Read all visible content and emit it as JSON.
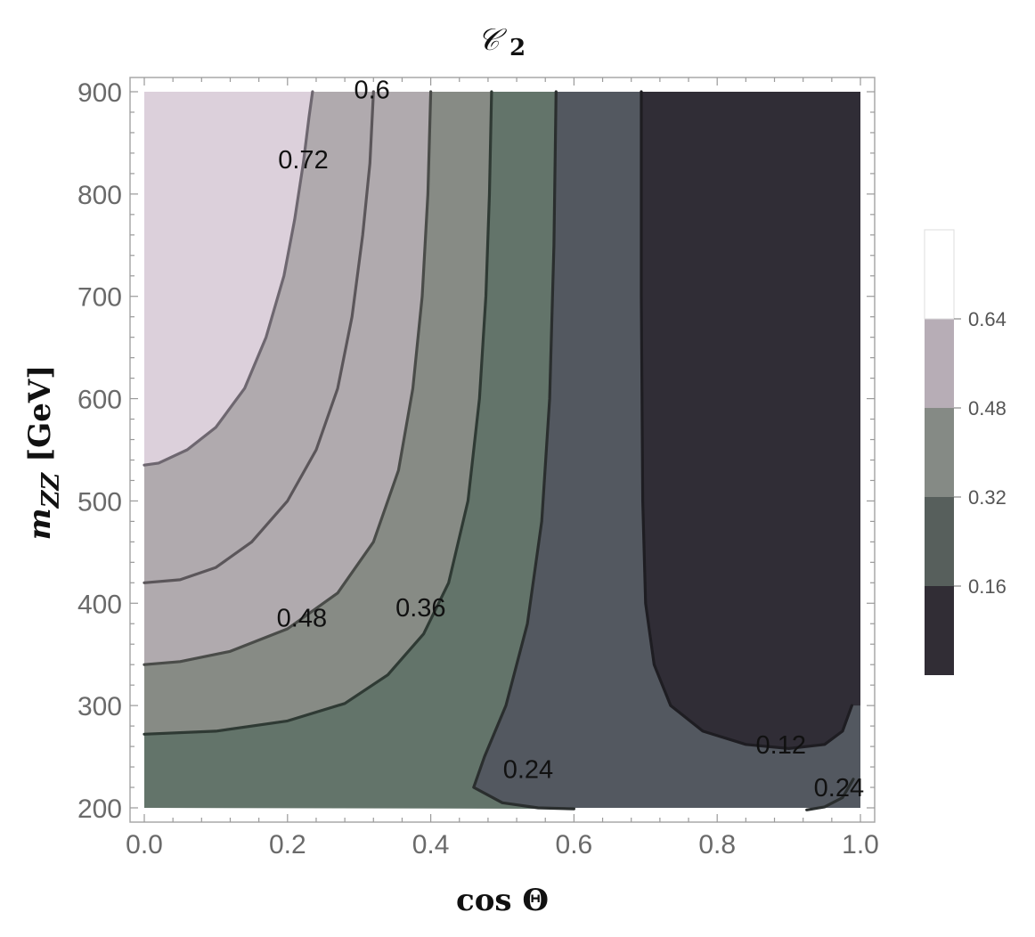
{
  "chart_data": {
    "type": "contour",
    "title": "𝒞",
    "title_subscript": "2",
    "xlabel": "cos Θ",
    "ylabel_main": "m",
    "ylabel_sub": "ZZ",
    "ylabel_unit": "[GeV]",
    "xlim": [
      0.0,
      1.0
    ],
    "ylim": [
      200,
      900
    ],
    "x_ticks": [
      0.0,
      0.2,
      0.4,
      0.6,
      0.8,
      1.0
    ],
    "x_tick_labels": [
      "0.0",
      "0.2",
      "0.4",
      "0.6",
      "0.8",
      "1.0"
    ],
    "y_ticks": [
      200,
      300,
      400,
      500,
      600,
      700,
      800,
      900
    ],
    "y_tick_labels": [
      "200",
      "300",
      "400",
      "500",
      "600",
      "700",
      "800",
      "900"
    ],
    "bands": [
      {
        "range": "> 0.72",
        "color": "#dcd0db"
      },
      {
        "range": "0.60 – 0.72",
        "color": "#b0aaae"
      },
      {
        "range": "0.48 – 0.60",
        "color": "#878b85"
      },
      {
        "range": "0.36 – 0.48",
        "color": "#63746a"
      },
      {
        "range": "0.12 – 0.36",
        "color": "#535860"
      },
      {
        "range": "< 0.12",
        "color": "#302d36"
      }
    ],
    "contours": [
      {
        "level": 0.72,
        "label": "0.72",
        "points": [
          [
            0.0,
            535
          ],
          [
            0.02,
            537
          ],
          [
            0.06,
            550
          ],
          [
            0.1,
            572
          ],
          [
            0.14,
            610
          ],
          [
            0.17,
            660
          ],
          [
            0.195,
            720
          ],
          [
            0.21,
            775
          ],
          [
            0.222,
            830
          ],
          [
            0.23,
            875
          ],
          [
            0.235,
            900
          ]
        ]
      },
      {
        "level": 0.6,
        "label": "0.6",
        "points": [
          [
            0.0,
            420
          ],
          [
            0.05,
            423
          ],
          [
            0.1,
            435
          ],
          [
            0.15,
            460
          ],
          [
            0.2,
            500
          ],
          [
            0.24,
            550
          ],
          [
            0.27,
            610
          ],
          [
            0.29,
            680
          ],
          [
            0.305,
            760
          ],
          [
            0.315,
            830
          ],
          [
            0.32,
            900
          ]
        ]
      },
      {
        "level": 0.48,
        "label": "0.48",
        "points": [
          [
            0.0,
            340
          ],
          [
            0.05,
            343
          ],
          [
            0.12,
            353
          ],
          [
            0.2,
            375
          ],
          [
            0.27,
            410
          ],
          [
            0.32,
            460
          ],
          [
            0.355,
            530
          ],
          [
            0.375,
            610
          ],
          [
            0.388,
            700
          ],
          [
            0.396,
            800
          ],
          [
            0.4,
            900
          ]
        ]
      },
      {
        "level": 0.36,
        "label": "0.36",
        "points": [
          [
            0.0,
            272
          ],
          [
            0.1,
            275
          ],
          [
            0.2,
            285
          ],
          [
            0.28,
            302
          ],
          [
            0.34,
            330
          ],
          [
            0.39,
            370
          ],
          [
            0.425,
            420
          ],
          [
            0.452,
            500
          ],
          [
            0.468,
            600
          ],
          [
            0.477,
            700
          ],
          [
            0.482,
            800
          ],
          [
            0.485,
            900
          ]
        ]
      },
      {
        "level": 0.24,
        "label": "0.24",
        "points": [
          [
            0.6,
            199
          ],
          [
            0.55,
            200
          ],
          [
            0.5,
            205
          ],
          [
            0.46,
            220
          ],
          [
            0.475,
            250
          ],
          [
            0.505,
            300
          ],
          [
            0.535,
            380
          ],
          [
            0.555,
            480
          ],
          [
            0.566,
            600
          ],
          [
            0.572,
            750
          ],
          [
            0.575,
            900
          ]
        ]
      },
      {
        "level": 0.12,
        "label": "0.12",
        "points": [
          [
            0.694,
            900
          ],
          [
            0.694,
            700
          ],
          [
            0.696,
            500
          ],
          [
            0.7,
            400
          ],
          [
            0.712,
            340
          ],
          [
            0.735,
            300
          ],
          [
            0.78,
            275
          ],
          [
            0.84,
            262
          ],
          [
            0.9,
            258
          ],
          [
            0.95,
            262
          ],
          [
            0.975,
            275
          ],
          [
            0.988,
            300
          ]
        ]
      },
      {
        "level": 0.24,
        "label": "0.24",
        "points": [
          [
            0.925,
            198
          ],
          [
            0.95,
            201
          ],
          [
            0.975,
            210
          ],
          [
            0.99,
            228
          ]
        ]
      }
    ],
    "contour_labels": [
      {
        "text": "0.6",
        "x": 0.318,
        "y": 902
      },
      {
        "text": "0.72",
        "x": 0.222,
        "y": 834
      },
      {
        "text": "0.48",
        "x": 0.22,
        "y": 386
      },
      {
        "text": "0.36",
        "x": 0.386,
        "y": 396
      },
      {
        "text": "0.24",
        "x": 0.536,
        "y": 238
      },
      {
        "text": "0.12",
        "x": 0.889,
        "y": 262
      },
      {
        "text": "0.24",
        "x": 0.97,
        "y": 220
      }
    ],
    "legend": {
      "placement": "right",
      "labels": [
        "0.64",
        "0.48",
        "0.32",
        "0.16"
      ],
      "swatches": [
        "#ffffff",
        "#b7adb6",
        "#858a85",
        "#575f5c",
        "#312d35"
      ]
    }
  }
}
